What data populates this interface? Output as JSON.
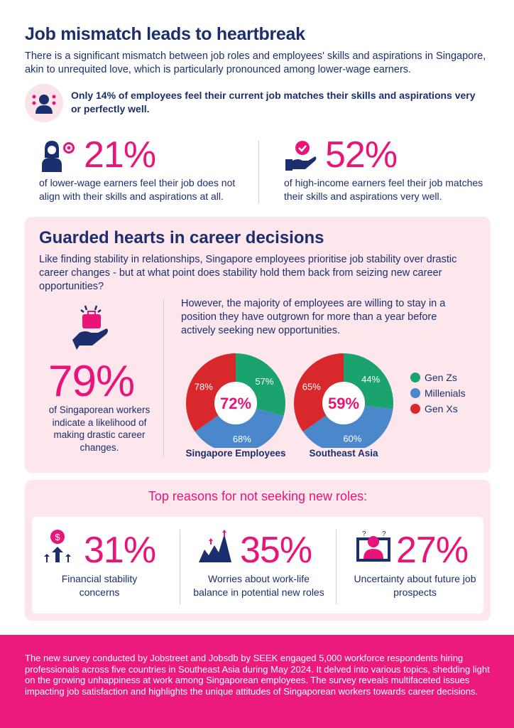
{
  "header": {
    "title": "Job mismatch leads to heartbreak",
    "intro": "There is a significant mismatch between job roles and employees' skills and aspirations in Singapore, akin to unrequited love, which is particularly pronounced among lower-wage earners.",
    "highlight": "Only 14% of employees feel their current job matches their skills and aspirations very or perfectly well."
  },
  "stats": [
    {
      "value": "21%",
      "text": "of lower-wage earners feel their job does not align with their skills and aspirations at all.",
      "icon": "woman-target-icon"
    },
    {
      "value": "52%",
      "text": "of high-income earners feel their job matches their skills and aspirations very well.",
      "icon": "hand-check-icon"
    }
  ],
  "guarded": {
    "title": "Guarded hearts in career decisions",
    "intro": "Like finding stability in relationships, Singapore employees prioritise job stability over drastic career changes - but at what point does stability hold them back from seizing new career opportunities?",
    "stat_value": "79%",
    "stat_text": "of Singaporean workers indicate a likelihood of making drastic career changes.",
    "chart_intro": "However, the majority of employees are willing to stay in a position they have outgrown for more than a year before actively seeking new opportunities."
  },
  "chart_data": {
    "type": "pie",
    "legend": [
      "Gen Zs",
      "Millenials",
      "Gen Xs"
    ],
    "legend_placement": "right",
    "colors": {
      "Gen Zs": "#1ba36f",
      "Millenials": "#4a88cb",
      "Gen Xs": "#d8282b"
    },
    "charts": [
      {
        "label": "Singapore Employees",
        "center": "72%",
        "values": {
          "Gen Zs": "57%",
          "Millenials": "68%",
          "Gen Xs": "78%"
        }
      },
      {
        "label": "Southeast Asia",
        "center": "59%",
        "values": {
          "Gen Zs": "44%",
          "Millenials": "60%",
          "Gen Xs": "65%"
        }
      }
    ]
  },
  "reasons": {
    "title": "Top reasons for not seeking new roles:",
    "items": [
      {
        "value": "31%",
        "text": "Financial stability concerns",
        "icon": "money-arrows-icon"
      },
      {
        "value": "35%",
        "text": "Worries about work-life balance in potential new roles",
        "icon": "mountain-arrows-icon"
      },
      {
        "value": "27%",
        "text": "Uncertainty about future job prospects",
        "icon": "confused-person-laptop-icon"
      }
    ]
  },
  "footer": {
    "text": "The new survey conducted by Jobstreet and Jobsdb by SEEK engaged 5,000 workforce respondents hiring professionals across five countries in Southeast Asia during May 2024. It delved into various topics, shedding light on the growing unhappiness at work among Singaporean employees. The survey reveals multifaceted issues impacting job satisfaction and highlights the unique attitudes of Singaporean workers towards career decisions."
  }
}
